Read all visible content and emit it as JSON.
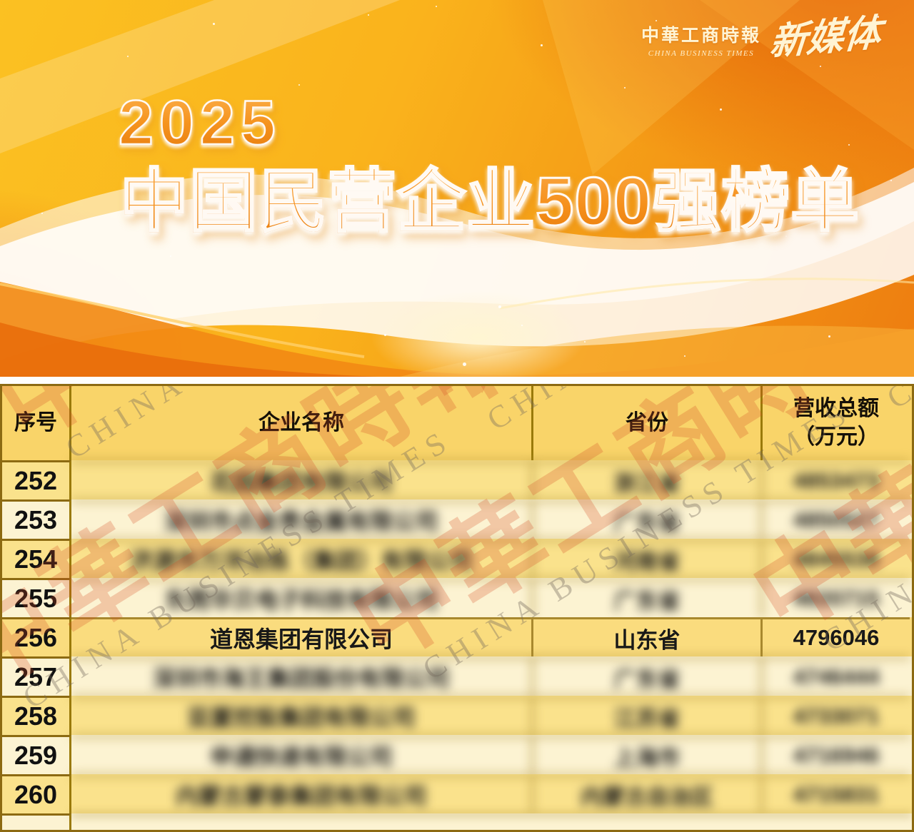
{
  "banner": {
    "year": "2025",
    "title": "中国民营企业500强榜单",
    "logo": {
      "name_cn": "中華工商時報",
      "name_en": "CHINA BUSINESS TIMES",
      "sub_brand": "新媒体"
    }
  },
  "watermark": {
    "text_cn": "中華工商時報",
    "text_en": "CHINA BUSINESS TIMES"
  },
  "table": {
    "headers": {
      "rank": "序号",
      "company": "企业名称",
      "province": "省份",
      "revenue_line1": "营收总额",
      "revenue_line2": "（万元）"
    },
    "rows": [
      {
        "rank": "252",
        "company": "花园集团有限公司",
        "province": "浙江省",
        "revenue": "4853473",
        "blurred": true
      },
      {
        "rank": "253",
        "company": "深圳市点金贵金属有限公司",
        "province": "广东省",
        "revenue": "4850527",
        "blurred": true
      },
      {
        "rank": "254",
        "company": "济源市万洋冶炼（集团）有限公司",
        "province": "河南省",
        "revenue": "4845538",
        "blurred": true
      },
      {
        "rank": "255",
        "company": "东莞华贝电子科技有限公司",
        "province": "广东省",
        "revenue": "4820715",
        "blurred": true
      },
      {
        "rank": "256",
        "company": "道恩集团有限公司",
        "province": "山东省",
        "revenue": "4796046",
        "blurred": false
      },
      {
        "rank": "257",
        "company": "深圳市海王集团股份有限公司",
        "province": "广东省",
        "revenue": "4746444",
        "blurred": true
      },
      {
        "rank": "258",
        "company": "亚厦控股集团有限公司",
        "province": "江苏省",
        "revenue": "4733071",
        "blurred": true
      },
      {
        "rank": "259",
        "company": "申通快递有限公司",
        "province": "上海市",
        "revenue": "4716946",
        "blurred": true
      },
      {
        "rank": "260",
        "company": "内蒙古蒙泰集团有限公司",
        "province": "内蒙古自治区",
        "revenue": "4715831",
        "blurred": true
      }
    ]
  },
  "colors": {
    "banner_amber": "#fbc122",
    "banner_deep_orange": "#e4650a",
    "title_orange": "#f5901c",
    "header_gold": "#f9d469",
    "row_yellow": "#fae28c",
    "row_cream": "#fcf3d2",
    "row_focus": "#fadc7e",
    "table_border": "#8c6a12",
    "watermark_red": "#d64e28"
  }
}
